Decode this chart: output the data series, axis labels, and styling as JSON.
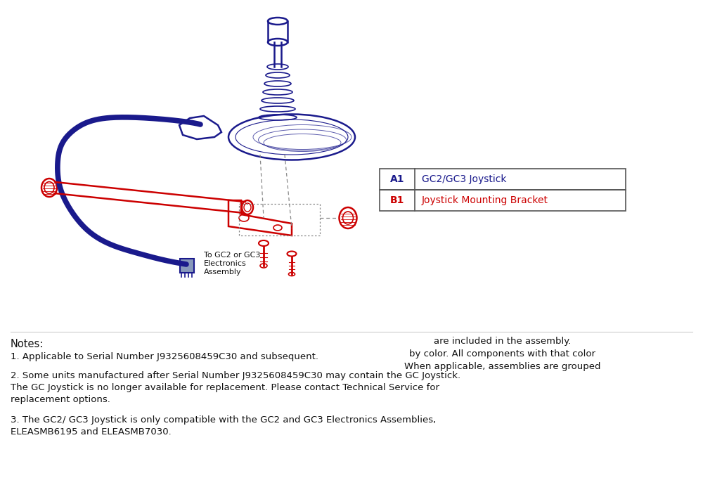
{
  "bg_color": "#ffffff",
  "blue_color": "#1a1a8c",
  "red_color": "#cc0000",
  "dark_color": "#111111",
  "gray_color": "#aaaaaa",
  "info_text_lines": [
    "When applicable, assemblies are grouped",
    "by color. All components with that color",
    "are included in the assembly."
  ],
  "table_rows": [
    {
      "code": "A1",
      "desc": "GC2/GC3 Joystick",
      "color": "#1a1a8c"
    },
    {
      "code": "B1",
      "desc": "Joystick Mounting Bracket",
      "color": "#cc0000"
    }
  ],
  "label_connector": "To GC2 or GC3\nElectronics\nAssembly",
  "notes_header": "Notes:",
  "note1": "1. Applicable to Serial Number J9325608459C30 and subsequent.",
  "note2_line1": "2. Some units manufactured after Serial Number J9325608459C30 may contain the GC Joystick.",
  "note2_line2": "The GC Joystick is no longer available for replacement. Please contact Technical Service for",
  "note2_line3": "replacement options.",
  "note3_line1": "3. The GC2/ GC3 Joystick is only compatible with the GC2 and GC3 Electronics Assemblies,",
  "note3_line2": "ELEASMB6195 and ELEASMB7030."
}
